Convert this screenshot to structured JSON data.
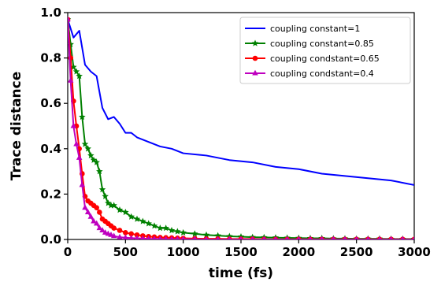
{
  "chart_data": {
    "type": "line",
    "xlabel": "time (fs)",
    "ylabel": "Trace distance",
    "xlim": [
      0,
      3000
    ],
    "ylim": [
      0,
      1.0
    ],
    "xticks": [
      "0",
      "500",
      "1000",
      "1500",
      "2000",
      "2500",
      "3000"
    ],
    "yticks": [
      "0.0",
      "0.2",
      "0.4",
      "0.6",
      "0.8",
      "1.0"
    ],
    "grid": false,
    "legend_position": "top-right",
    "series": [
      {
        "name": "coupling constant=1",
        "color": "#0000ff",
        "marker": "none",
        "x": [
          0,
          50,
          100,
          150,
          200,
          250,
          300,
          350,
          400,
          450,
          500,
          550,
          600,
          650,
          700,
          800,
          900,
          1000,
          1200,
          1400,
          1600,
          1800,
          2000,
          2200,
          2400,
          2600,
          2800,
          3000
        ],
        "y": [
          0.97,
          0.89,
          0.92,
          0.77,
          0.74,
          0.72,
          0.58,
          0.53,
          0.54,
          0.51,
          0.47,
          0.47,
          0.45,
          0.44,
          0.43,
          0.41,
          0.4,
          0.38,
          0.37,
          0.35,
          0.34,
          0.32,
          0.31,
          0.29,
          0.28,
          0.27,
          0.26,
          0.24
        ]
      },
      {
        "name": "coupling constant=0.85",
        "color": "#008000",
        "marker": "star",
        "x": [
          0,
          25,
          50,
          75,
          100,
          125,
          150,
          175,
          200,
          225,
          250,
          275,
          300,
          325,
          350,
          375,
          400,
          450,
          500,
          550,
          600,
          650,
          700,
          750,
          800,
          850,
          900,
          950,
          1000,
          1100,
          1200,
          1300,
          1400,
          1500,
          1600,
          1700,
          1800,
          1900,
          2000,
          2100,
          2200,
          2300,
          2400,
          2500,
          2600,
          2700,
          2800,
          2900,
          3000
        ],
        "y": [
          0.97,
          0.86,
          0.76,
          0.74,
          0.72,
          0.54,
          0.42,
          0.4,
          0.37,
          0.35,
          0.34,
          0.3,
          0.22,
          0.19,
          0.16,
          0.15,
          0.15,
          0.13,
          0.12,
          0.1,
          0.09,
          0.08,
          0.07,
          0.06,
          0.05,
          0.05,
          0.04,
          0.035,
          0.03,
          0.025,
          0.02,
          0.017,
          0.014,
          0.012,
          0.01,
          0.009,
          0.008,
          0.007,
          0.006,
          0.005,
          0.005,
          0.004,
          0.004,
          0.003,
          0.003,
          0.003,
          0.002,
          0.002,
          0.002
        ]
      },
      {
        "name": "coupling condstant=0.65",
        "color": "#ff0000",
        "marker": "circle",
        "x": [
          0,
          25,
          50,
          75,
          100,
          125,
          150,
          175,
          200,
          225,
          250,
          275,
          300,
          325,
          350,
          375,
          400,
          450,
          500,
          550,
          600,
          650,
          700,
          750,
          800,
          850,
          900,
          950,
          1000,
          1100,
          1200,
          1300,
          1400,
          1500,
          1600,
          1700,
          1800,
          1900,
          2000,
          2100,
          2200,
          2300,
          2400,
          2500,
          2600,
          2700,
          2800,
          2900,
          3000
        ],
        "y": [
          0.97,
          0.8,
          0.61,
          0.5,
          0.4,
          0.29,
          0.19,
          0.17,
          0.16,
          0.15,
          0.14,
          0.12,
          0.09,
          0.08,
          0.07,
          0.06,
          0.05,
          0.04,
          0.03,
          0.025,
          0.02,
          0.016,
          0.013,
          0.011,
          0.009,
          0.008,
          0.007,
          0.006,
          0.005,
          0.004,
          0.003,
          0.003,
          0.002,
          0.002,
          0.002,
          0.001,
          0.001,
          0.001,
          0.001,
          0.001,
          0.001,
          0.001,
          0.001,
          0.001,
          0.001,
          0.001,
          0.001,
          0.001,
          0.001
        ]
      },
      {
        "name": "coupling condstant=0.4",
        "color": "#bf00bf",
        "marker": "triangle",
        "x": [
          0,
          25,
          50,
          75,
          100,
          125,
          150,
          175,
          200,
          225,
          250,
          275,
          300,
          325,
          350,
          375,
          400,
          450,
          500,
          550,
          600,
          650,
          700,
          750,
          800,
          850,
          900,
          950,
          1000,
          1100,
          1200,
          1300,
          1400,
          1500,
          1600,
          1700,
          1800,
          1900,
          2000,
          2100,
          2200,
          2300,
          2400,
          2500,
          2600,
          2700,
          2800,
          2900,
          3000
        ],
        "y": [
          0.97,
          0.7,
          0.5,
          0.42,
          0.36,
          0.24,
          0.14,
          0.12,
          0.1,
          0.08,
          0.07,
          0.05,
          0.04,
          0.03,
          0.025,
          0.02,
          0.015,
          0.01,
          0.008,
          0.006,
          0.005,
          0.004,
          0.003,
          0.002,
          0.002,
          0.001,
          0.001,
          0.001,
          0.001,
          0.001,
          0.0,
          0.0,
          0.0,
          0.0,
          0.0,
          0.0,
          0.0,
          0.0,
          0.0,
          0.0,
          0.0,
          0.0,
          0.0,
          0.0,
          0.0,
          0.0,
          0.0,
          0.0,
          0.0
        ]
      }
    ]
  }
}
